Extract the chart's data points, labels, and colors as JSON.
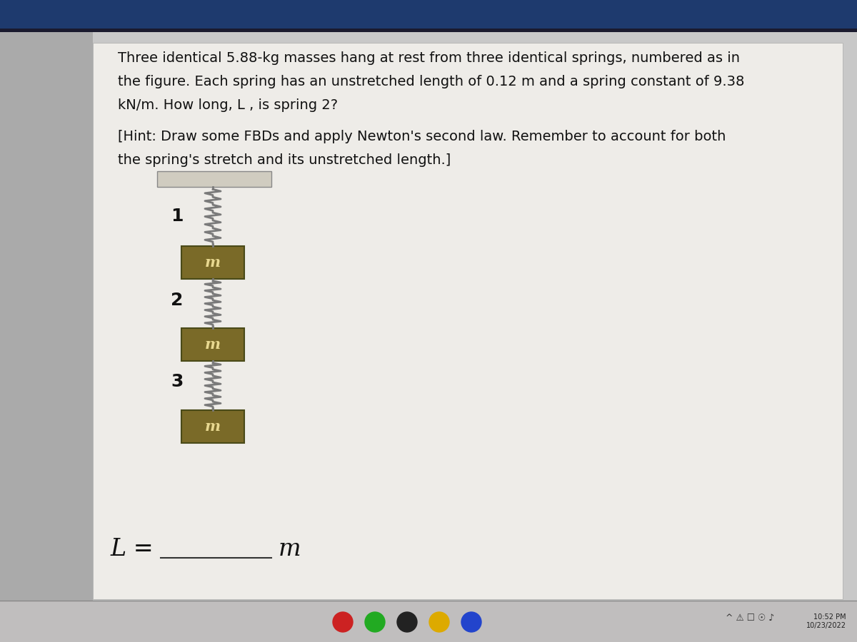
{
  "bg_color": "#1a1a2e",
  "screen_bg": "#c8c8c8",
  "panel_color": "#e8e6e3",
  "titlebar_color": "#1e3a6e",
  "taskbar_color": "#c0bebe",
  "ceiling_color": "#d0ccc0",
  "spring_color": "#7a7a7a",
  "mass_color": "#7a6a28",
  "mass_border_color": "#4a4a18",
  "mass_text_color": "#e8d890",
  "label_color": "#111111",
  "text_color": "#111111",
  "title_line1": "Three identical 5.88-kg masses hang at rest from three identical springs, numbered as in",
  "title_line2": "the figure. Each spring has an unstretched length of 0.12 m and a spring constant of 9.38",
  "title_line3": "kN/m. How long, L , is spring 2?",
  "hint_line1": "[Hint: Draw some FBDs and apply Newton's second law. Remember to account for both",
  "hint_line2": "the spring's stretch and its unstretched length.]",
  "spring_labels": [
    "1",
    "2",
    "3"
  ],
  "mass_label": "m",
  "answer_label": "L =",
  "answer_unit": "m",
  "num_coils": 7,
  "coil_amplitude": 0.008,
  "text_fontsize": 14,
  "hint_fontsize": 14,
  "label_fontsize": 18,
  "mass_fontsize": 15,
  "answer_fontsize": 22
}
